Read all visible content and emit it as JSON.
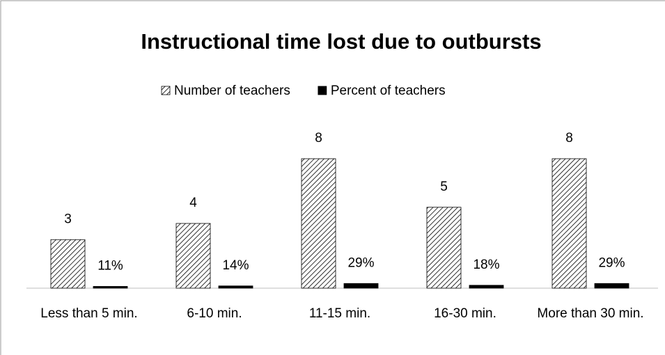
{
  "chart_data": {
    "type": "bar",
    "title": "Instructional time lost due to outbursts",
    "categories": [
      "Less than 5 min.",
      "6-10 min.",
      "11-15 min.",
      "16-30 min.",
      "More than 30 min."
    ],
    "series": [
      {
        "name": "Number of teachers",
        "color": "#000000",
        "pattern": "hatch",
        "values": [
          3,
          4,
          8,
          5,
          8
        ]
      },
      {
        "name": "Percent of teachers",
        "color": "#000000",
        "axis": "y2",
        "values": [
          11,
          14,
          29,
          18,
          29
        ],
        "value_labels": [
          "11%",
          "14%",
          "29%",
          "18%",
          "29%"
        ]
      }
    ],
    "ylim": [
      0,
      10
    ],
    "y2lim": [
      0,
      1000
    ],
    "legend": "top",
    "grid": false
  }
}
